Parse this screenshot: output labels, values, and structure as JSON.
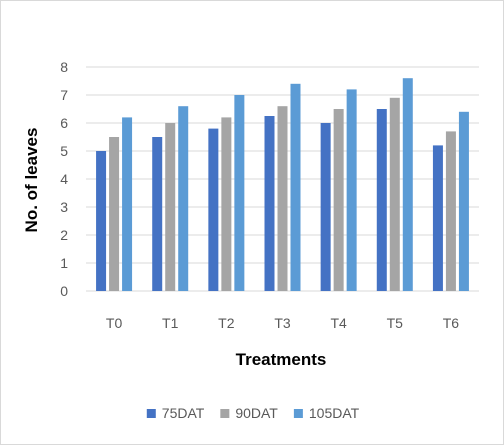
{
  "chart_data": {
    "type": "bar",
    "title": "",
    "xlabel": "Treatments",
    "ylabel": "No. of leaves",
    "categories": [
      "T0",
      "T1",
      "T2",
      "T3",
      "T4",
      "T5",
      "T6"
    ],
    "series": [
      {
        "name": "75DAT",
        "color": "#4472c4",
        "values": [
          5.0,
          5.5,
          5.8,
          6.25,
          6.0,
          6.5,
          5.2
        ]
      },
      {
        "name": "90DAT",
        "color": "#a5a5a5",
        "values": [
          5.5,
          6.0,
          6.2,
          6.6,
          6.5,
          6.9,
          5.7
        ]
      },
      {
        "name": "105DAT",
        "color": "#5b9bd5",
        "values": [
          6.2,
          6.6,
          7.0,
          7.4,
          7.2,
          7.6,
          6.4
        ]
      }
    ],
    "ylim": [
      0,
      8
    ],
    "yticks": [
      0,
      1,
      2,
      3,
      4,
      5,
      6,
      7,
      8
    ],
    "grid": true,
    "legend_position": "bottom"
  }
}
